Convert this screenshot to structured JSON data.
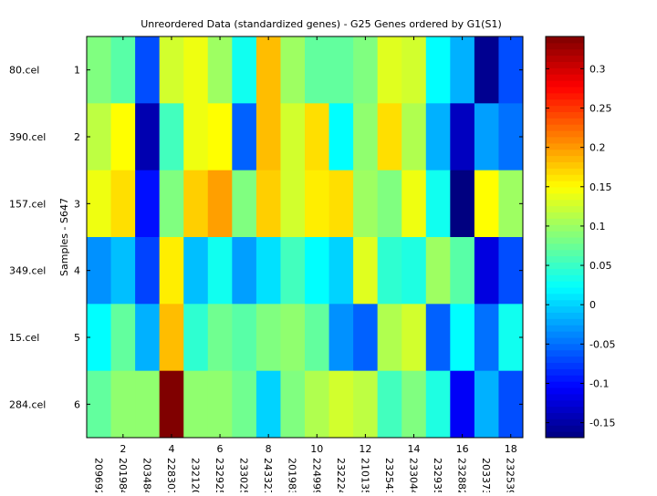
{
  "chart_data": {
    "type": "heatmap",
    "title": "Unreordered Data (standardized genes) - G25 Genes ordered by G1(S1)",
    "ylabel": "Samples - S647",
    "xlabel": "",
    "colormap": "jet",
    "clim": [
      -0.169,
      0.341
    ],
    "row_labels": [
      "80.cel",
      "390.cel",
      "157.cel",
      "349.cel",
      "15.cel",
      "284.cel"
    ],
    "row_ticks": [
      "1",
      "2",
      "3",
      "4",
      "5",
      "6"
    ],
    "col_labels": [
      "209692_",
      "201984_",
      "203484_",
      "228307_",
      "232120_",
      "232925_",
      "233025_",
      "243327_",
      "201983_",
      "224999_",
      "232224_",
      "210135_",
      "232541_",
      "233044_",
      "232935_",
      "232882_",
      "203373_",
      "232539_"
    ],
    "col_ticks": [
      "2",
      "4",
      "6",
      "8",
      "10",
      "12",
      "14",
      "16",
      "18"
    ],
    "colorbar_ticks": [
      "0.3",
      "0.25",
      "0.2",
      "0.15",
      "0.1",
      "0.05",
      "0",
      "-0.05",
      "-0.1",
      "-0.15"
    ],
    "values": [
      [
        0.086,
        0.066,
        -0.067,
        0.127,
        0.142,
        0.101,
        0.03,
        0.183,
        0.101,
        0.071,
        0.071,
        0.086,
        0.134,
        0.127,
        0.022,
        -0.017,
        -0.161,
        -0.067
      ],
      [
        0.117,
        0.15,
        -0.145,
        0.055,
        0.142,
        0.15,
        -0.057,
        0.183,
        0.127,
        0.166,
        0.022,
        0.094,
        0.166,
        0.11,
        -0.017,
        -0.137,
        -0.026,
        -0.049
      ],
      [
        0.142,
        0.166,
        -0.098,
        0.086,
        0.174,
        0.198,
        0.086,
        0.174,
        0.127,
        0.158,
        0.166,
        0.101,
        0.086,
        0.142,
        0.03,
        -0.169,
        0.15,
        0.101
      ],
      [
        -0.033,
        -0.01,
        -0.072,
        0.158,
        -0.01,
        0.03,
        -0.026,
        0.007,
        0.055,
        0.022,
        0.0,
        0.134,
        0.045,
        0.037,
        0.101,
        0.066,
        -0.121,
        -0.067
      ],
      [
        0.022,
        0.071,
        -0.017,
        0.183,
        0.045,
        0.078,
        0.066,
        0.086,
        0.094,
        0.071,
        -0.033,
        -0.057,
        0.11,
        0.127,
        -0.057,
        0.022,
        -0.049,
        0.03
      ],
      [
        0.071,
        0.094,
        0.094,
        0.341,
        0.094,
        0.094,
        0.078,
        0.0,
        0.086,
        0.11,
        0.127,
        0.117,
        0.055,
        0.086,
        0.037,
        -0.109,
        -0.017,
        -0.067
      ]
    ]
  }
}
